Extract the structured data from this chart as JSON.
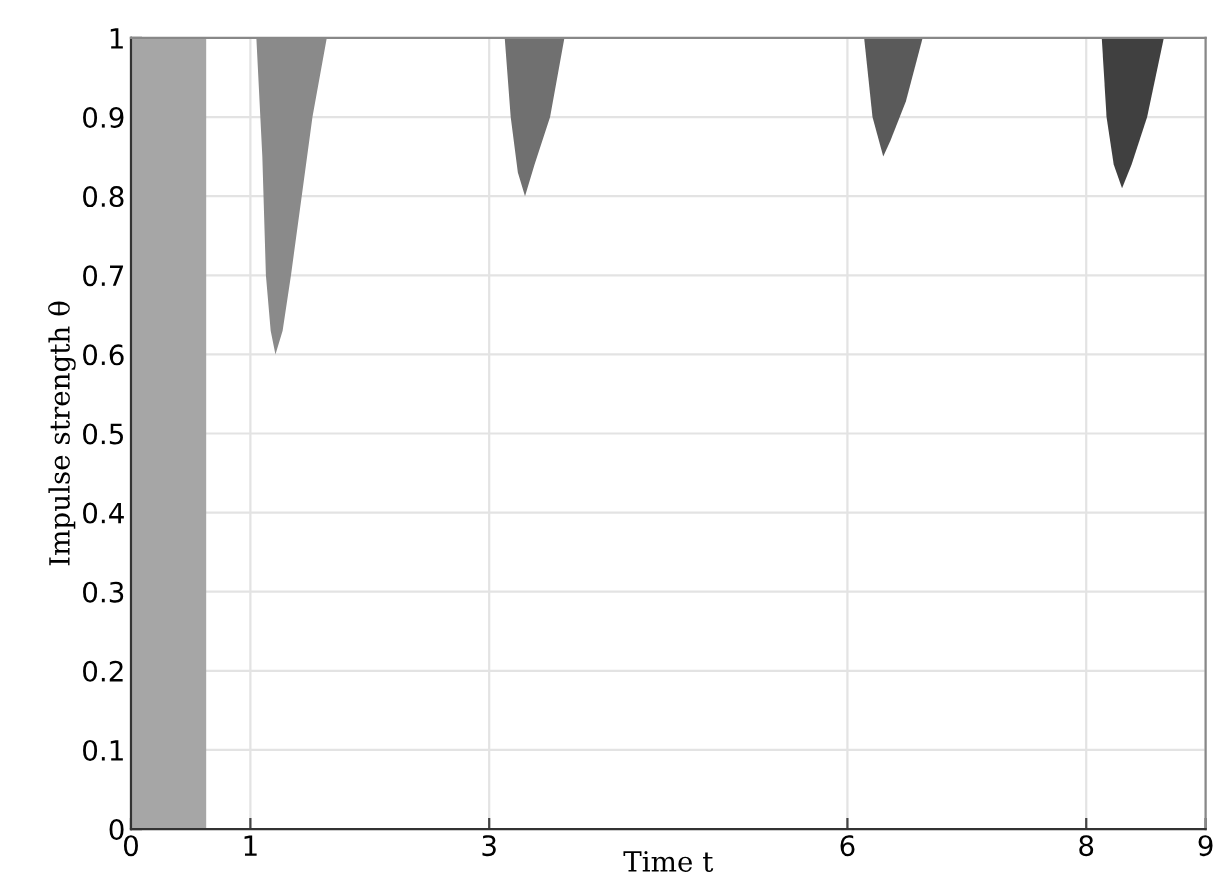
{
  "chart_data": {
    "type": "area",
    "xlabel": "Time t",
    "ylabel": "Impulse strength θ",
    "xlim": [
      0,
      9
    ],
    "xticks": [
      0,
      1,
      3,
      6,
      8,
      9
    ],
    "ylim": [
      0,
      1
    ],
    "yticks": [
      0,
      0.1,
      0.2,
      0.3,
      0.4,
      0.5,
      0.6,
      0.7,
      0.8,
      0.9,
      1
    ],
    "grid": true,
    "legend": false,
    "bands": [
      {
        "axis": "x",
        "from": 0,
        "to": 0.63,
        "color": "#a6a6a6"
      }
    ],
    "series": [
      {
        "color": "#8a8a8a",
        "x": [
          1.05,
          1.1,
          1.13,
          1.17,
          1.21,
          1.27,
          1.34,
          1.43,
          1.52,
          1.64
        ],
        "values": [
          1.0,
          0.85,
          0.7,
          0.63,
          0.6,
          0.63,
          0.7,
          0.8,
          0.9,
          1.0
        ]
      },
      {
        "color": "#707070",
        "x": [
          3.13,
          3.18,
          3.24,
          3.3,
          3.38,
          3.51,
          3.63
        ],
        "values": [
          1.0,
          0.9,
          0.83,
          0.8,
          0.84,
          0.9,
          1.0
        ]
      },
      {
        "color": "#5a5a5a",
        "x": [
          6.14,
          6.21,
          6.3,
          6.36,
          6.49,
          6.63
        ],
        "values": [
          1.0,
          0.9,
          0.85,
          0.87,
          0.92,
          1.0
        ]
      },
      {
        "color": "#404040",
        "x": [
          8.13,
          8.17,
          8.23,
          8.3,
          8.38,
          8.51,
          8.65
        ],
        "values": [
          1.0,
          0.9,
          0.84,
          0.81,
          0.84,
          0.9,
          1.0
        ]
      }
    ]
  }
}
